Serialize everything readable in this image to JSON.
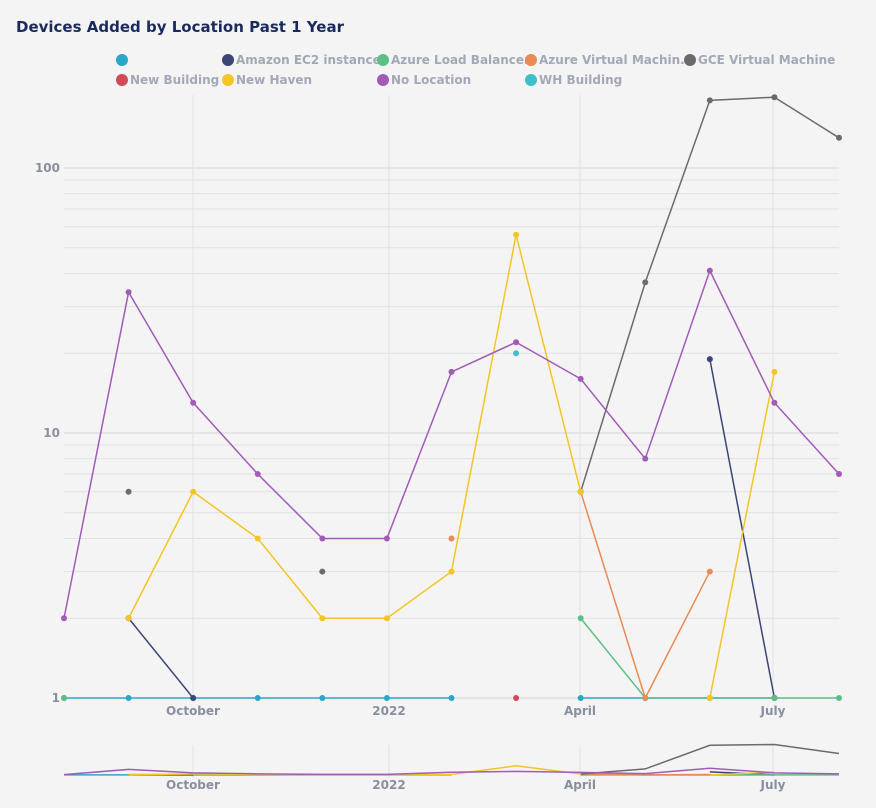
{
  "header": {
    "title": "Devices Added by Location Past 1 Year"
  },
  "legend": [
    {
      "label": "",
      "color": "#2aa6c9"
    },
    {
      "label": "Amazon EC2 instance",
      "color": "#3d4577"
    },
    {
      "label": "Azure Load Balancer",
      "color": "#5cbf86"
    },
    {
      "label": "Azure Virtual Machin...",
      "color": "#ea8a55"
    },
    {
      "label": "GCE Virtual Machine",
      "color": "#6b6b6b"
    },
    {
      "label": "New Building",
      "color": "#d14a57"
    },
    {
      "label": "New Haven",
      "color": "#f4c524"
    },
    {
      "label": "No Location",
      "color": "#a25cb5"
    },
    {
      "label": "WH Building",
      "color": "#3cc0c9"
    }
  ],
  "chart_data": {
    "type": "line",
    "y_scale": "log",
    "ylim": [
      1,
      200
    ],
    "y_tick_labels": [
      "1",
      "10",
      "100"
    ],
    "x_tick_labels": [
      "October",
      "2022",
      "April",
      "July"
    ],
    "grid": true,
    "legend_position": "top",
    "categories": [
      "2021-08",
      "2021-09",
      "2021-10",
      "2021-11",
      "2021-12",
      "2022-01",
      "2022-02",
      "2022-03",
      "2022-04",
      "2022-05",
      "2022-06",
      "2022-07",
      "2022-08"
    ],
    "series": [
      {
        "name": "",
        "color": "#2aa6c9",
        "values": [
          1,
          1,
          1,
          1,
          1,
          1,
          1,
          null,
          1,
          1,
          1,
          1,
          null
        ]
      },
      {
        "name": "Amazon EC2 instance",
        "color": "#3d4577",
        "values": [
          null,
          2,
          1,
          null,
          null,
          null,
          null,
          null,
          null,
          null,
          19,
          1,
          null
        ]
      },
      {
        "name": "Azure Load Balancer",
        "color": "#5cbf86",
        "values": [
          1,
          null,
          null,
          null,
          null,
          null,
          null,
          null,
          2,
          1,
          1,
          1,
          1
        ]
      },
      {
        "name": "Azure Virtual Machin...",
        "color": "#ea8a55",
        "values": [
          null,
          null,
          null,
          null,
          null,
          null,
          4,
          null,
          6,
          1,
          3,
          null,
          null
        ]
      },
      {
        "name": "GCE Virtual Machine",
        "color": "#6b6b6b",
        "values": [
          null,
          6,
          null,
          null,
          3,
          null,
          null,
          null,
          6,
          37,
          180,
          185,
          130
        ]
      },
      {
        "name": "New Building",
        "color": "#d14a57",
        "values": [
          null,
          null,
          null,
          null,
          null,
          null,
          null,
          1,
          null,
          null,
          null,
          null,
          null
        ]
      },
      {
        "name": "New Haven",
        "color": "#f4c524",
        "values": [
          null,
          2,
          6,
          4,
          2,
          2,
          3,
          56,
          6,
          null,
          1,
          17,
          null
        ]
      },
      {
        "name": "No Location",
        "color": "#a25cb5",
        "values": [
          2,
          34,
          13,
          7,
          4,
          4,
          17,
          22,
          16,
          8,
          41,
          13,
          7
        ]
      },
      {
        "name": "WH Building",
        "color": "#3cc0c9",
        "values": [
          null,
          null,
          null,
          null,
          null,
          null,
          null,
          20,
          null,
          null,
          null,
          null,
          null
        ]
      }
    ]
  }
}
